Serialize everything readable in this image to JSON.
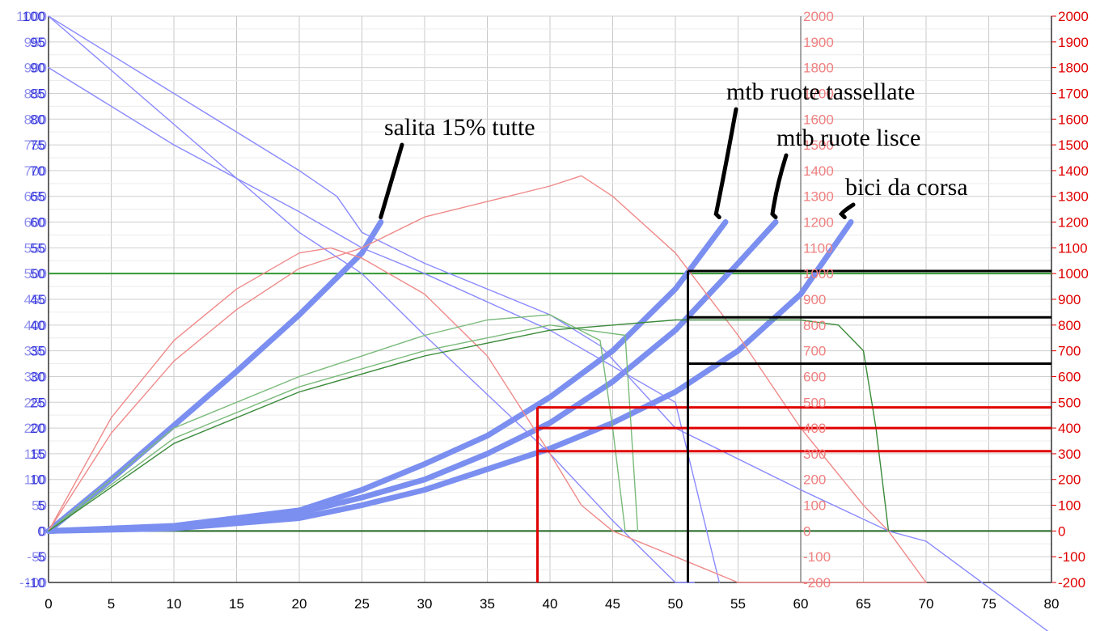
{
  "chart_data": {
    "type": "line",
    "title": "",
    "xlabel": "",
    "ylabel": "",
    "grid": true,
    "x_axis": {
      "range": [
        0,
        80
      ],
      "ticks": [
        "0",
        "5",
        "10",
        "15",
        "20",
        "25",
        "30",
        "35",
        "40",
        "45",
        "50",
        "55",
        "60",
        "65",
        "70",
        "75",
        "80"
      ]
    },
    "y_axes": {
      "left_blue": {
        "range": [
          -10,
          100
        ],
        "color": "#3333dd",
        "ticks": [
          "-10",
          "-5",
          "0",
          "5",
          "10",
          "15",
          "20",
          "25",
          "30",
          "35",
          "40",
          "45",
          "50",
          "55",
          "60",
          "65",
          "70",
          "75",
          "80",
          "85",
          "90",
          "95",
          "100"
        ]
      },
      "left_blue_overlap": {
        "color": "#3333dd",
        "ticks": [
          "-100",
          "-50",
          "0",
          "50",
          "100",
          "150",
          "200",
          "250",
          "300",
          "350",
          "400",
          "450",
          "500",
          "550",
          "600",
          "650",
          "700",
          "750",
          "800",
          "850",
          "900",
          "950",
          "1000"
        ]
      },
      "mid_pink": {
        "range": [
          -200,
          2000
        ],
        "color": "#f08080",
        "ticks": [
          "-200",
          "-100",
          "0",
          "100",
          "200",
          "300",
          "400",
          "500",
          "600",
          "700",
          "800",
          "900",
          "1000",
          "1100",
          "1200",
          "1300",
          "1400",
          "1500",
          "1600",
          "1700",
          "1800",
          "1900",
          "2000"
        ]
      },
      "right_red": {
        "range": [
          -200,
          2000
        ],
        "color": "#e00000",
        "ticks": [
          "-200",
          "-100",
          "0",
          "100",
          "200",
          "300",
          "400",
          "500",
          "600",
          "700",
          "800",
          "900",
          "1000",
          "1100",
          "1200",
          "1300",
          "1400",
          "1500",
          "1600",
          "1700",
          "1800",
          "1900",
          "2000"
        ]
      }
    },
    "reference_lines": [
      {
        "kind": "horizontal",
        "y": 50,
        "axis": "left_blue",
        "color": "#339933",
        "x_range": [
          0,
          80
        ]
      },
      {
        "kind": "horizontal",
        "y": 0,
        "axis": "left_blue",
        "color": "#226622",
        "x_range": [
          0,
          80
        ]
      }
    ],
    "series": [
      {
        "color": "#7b8ff0",
        "style": "thick",
        "x": [
          0,
          5,
          10,
          15,
          20,
          25,
          26.5
        ],
        "y": [
          0,
          10,
          20.5,
          31,
          42,
          54,
          60
        ]
      },
      {
        "color": "#7b8ff0",
        "style": "thick",
        "x": [
          0,
          10,
          20,
          25,
          30,
          35,
          40,
          45,
          50,
          54
        ],
        "y": [
          0,
          1,
          4,
          8,
          13,
          18.5,
          26,
          35,
          47,
          60
        ]
      },
      {
        "color": "#7b8ff0",
        "style": "thick",
        "x": [
          0,
          10,
          20,
          25,
          30,
          35,
          40,
          45,
          50,
          55,
          58
        ],
        "y": [
          0,
          0.8,
          3.5,
          6.5,
          10,
          15,
          21,
          29,
          39,
          52,
          60
        ]
      },
      {
        "color": "#7b8ff0",
        "style": "thick",
        "x": [
          0,
          10,
          20,
          25,
          30,
          35,
          40,
          45,
          50,
          55,
          60,
          64
        ],
        "y": [
          0,
          0.5,
          2.5,
          5,
          8,
          12,
          16,
          21,
          27,
          35,
          46,
          60
        ]
      },
      {
        "color": "#8a8aff",
        "style": "thin",
        "x": [
          0,
          10,
          20,
          23,
          25,
          30,
          40,
          44,
          50,
          60,
          67,
          70,
          80
        ],
        "y": [
          100,
          85,
          70,
          65,
          58,
          52,
          42,
          36,
          20,
          8,
          0,
          -2,
          -20
        ]
      },
      {
        "color": "#8a8aff",
        "style": "thin",
        "x": [
          0,
          10,
          20,
          25,
          30,
          40,
          50,
          53.5
        ],
        "y": [
          90,
          75,
          62,
          55,
          50,
          39,
          25,
          -10
        ]
      },
      {
        "color": "#8a8aff",
        "style": "thin",
        "x": [
          0,
          10,
          20,
          25,
          30,
          40,
          45,
          50,
          51.5
        ],
        "y": [
          100,
          79,
          58,
          50,
          38,
          15,
          2,
          -10,
          -10
        ]
      },
      {
        "color": "#f08a8a",
        "style": "thin",
        "x": [
          0,
          5,
          10,
          15,
          20,
          22.5,
          25,
          30,
          35,
          40,
          42.5,
          45,
          50,
          55,
          60,
          65,
          67,
          70
        ],
        "y": [
          0,
          22,
          37,
          47,
          54,
          55,
          53,
          46,
          34,
          15,
          5,
          0,
          -5,
          -10,
          -10,
          -10,
          -10,
          -10
        ]
      },
      {
        "color": "#f08a8a",
        "style": "thin",
        "x": [
          0,
          5,
          10,
          15,
          20,
          25,
          30,
          35,
          40,
          42.5,
          45,
          50,
          55,
          60,
          65,
          67,
          70
        ],
        "y": [
          0,
          19,
          33,
          43,
          51,
          55,
          61,
          64,
          67,
          69,
          65,
          54,
          38,
          20,
          5,
          0,
          -10
        ]
      },
      {
        "color": "#7aba7a",
        "style": "thin",
        "x": [
          0,
          10,
          20,
          30,
          35,
          40,
          44,
          45,
          46
        ],
        "y": [
          0,
          20,
          30,
          38,
          41,
          42,
          37,
          20,
          0
        ]
      },
      {
        "color": "#7aba7a",
        "style": "thin",
        "x": [
          0,
          10,
          20,
          30,
          40,
          46,
          47
        ],
        "y": [
          0,
          18,
          28,
          35,
          40,
          38,
          0
        ]
      },
      {
        "color": "#3a8a3a",
        "style": "thin",
        "x": [
          0,
          10,
          20,
          30,
          40,
          50,
          60,
          63,
          65,
          66,
          67
        ],
        "y": [
          0,
          17,
          27,
          34,
          39,
          41,
          41,
          40,
          35,
          20,
          0
        ]
      }
    ],
    "annotations": [
      {
        "text": "salita 15% tutte",
        "target_x": 26.5,
        "target_y": 60
      },
      {
        "text": "mtb ruote tassellate",
        "target_x": 53.5,
        "target_y": 60
      },
      {
        "text": "mtb ruote lisce",
        "target_x": 58,
        "target_y": 60
      },
      {
        "text": "bici da corsa",
        "target_x": 63.5,
        "target_y": 60
      }
    ],
    "guide_lines": [
      {
        "color": "#e00000",
        "x": 39,
        "right_values": [
          480,
          400,
          310
        ]
      },
      {
        "color": "#000000",
        "x": 51,
        "right_values": [
          1010,
          830,
          650
        ]
      }
    ]
  }
}
